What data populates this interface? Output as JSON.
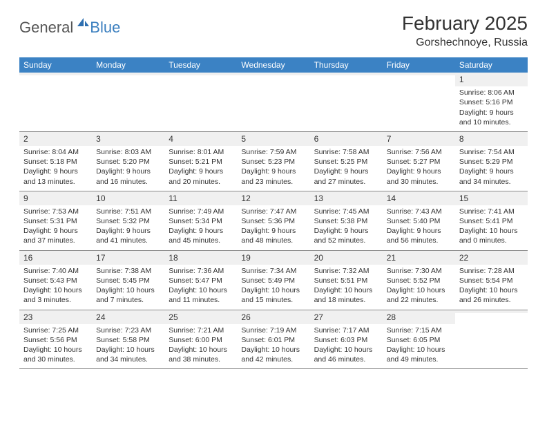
{
  "logo": {
    "general": "General",
    "blue": "Blue"
  },
  "title": "February 2025",
  "location": "Gorshechnoye, Russia",
  "colors": {
    "header_bg": "#3b82c4",
    "header_text": "#ffffff",
    "daynum_bg": "#f0f0f0",
    "border": "#888888",
    "logo_blue": "#3b7fbf",
    "body_text": "#333333"
  },
  "day_headers": [
    "Sunday",
    "Monday",
    "Tuesday",
    "Wednesday",
    "Thursday",
    "Friday",
    "Saturday"
  ],
  "weeks": [
    [
      {
        "n": "",
        "sunrise": "",
        "sunset": "",
        "daylight": ""
      },
      {
        "n": "",
        "sunrise": "",
        "sunset": "",
        "daylight": ""
      },
      {
        "n": "",
        "sunrise": "",
        "sunset": "",
        "daylight": ""
      },
      {
        "n": "",
        "sunrise": "",
        "sunset": "",
        "daylight": ""
      },
      {
        "n": "",
        "sunrise": "",
        "sunset": "",
        "daylight": ""
      },
      {
        "n": "",
        "sunrise": "",
        "sunset": "",
        "daylight": ""
      },
      {
        "n": "1",
        "sunrise": "Sunrise: 8:06 AM",
        "sunset": "Sunset: 5:16 PM",
        "daylight": "Daylight: 9 hours and 10 minutes."
      }
    ],
    [
      {
        "n": "2",
        "sunrise": "Sunrise: 8:04 AM",
        "sunset": "Sunset: 5:18 PM",
        "daylight": "Daylight: 9 hours and 13 minutes."
      },
      {
        "n": "3",
        "sunrise": "Sunrise: 8:03 AM",
        "sunset": "Sunset: 5:20 PM",
        "daylight": "Daylight: 9 hours and 16 minutes."
      },
      {
        "n": "4",
        "sunrise": "Sunrise: 8:01 AM",
        "sunset": "Sunset: 5:21 PM",
        "daylight": "Daylight: 9 hours and 20 minutes."
      },
      {
        "n": "5",
        "sunrise": "Sunrise: 7:59 AM",
        "sunset": "Sunset: 5:23 PM",
        "daylight": "Daylight: 9 hours and 23 minutes."
      },
      {
        "n": "6",
        "sunrise": "Sunrise: 7:58 AM",
        "sunset": "Sunset: 5:25 PM",
        "daylight": "Daylight: 9 hours and 27 minutes."
      },
      {
        "n": "7",
        "sunrise": "Sunrise: 7:56 AM",
        "sunset": "Sunset: 5:27 PM",
        "daylight": "Daylight: 9 hours and 30 minutes."
      },
      {
        "n": "8",
        "sunrise": "Sunrise: 7:54 AM",
        "sunset": "Sunset: 5:29 PM",
        "daylight": "Daylight: 9 hours and 34 minutes."
      }
    ],
    [
      {
        "n": "9",
        "sunrise": "Sunrise: 7:53 AM",
        "sunset": "Sunset: 5:31 PM",
        "daylight": "Daylight: 9 hours and 37 minutes."
      },
      {
        "n": "10",
        "sunrise": "Sunrise: 7:51 AM",
        "sunset": "Sunset: 5:32 PM",
        "daylight": "Daylight: 9 hours and 41 minutes."
      },
      {
        "n": "11",
        "sunrise": "Sunrise: 7:49 AM",
        "sunset": "Sunset: 5:34 PM",
        "daylight": "Daylight: 9 hours and 45 minutes."
      },
      {
        "n": "12",
        "sunrise": "Sunrise: 7:47 AM",
        "sunset": "Sunset: 5:36 PM",
        "daylight": "Daylight: 9 hours and 48 minutes."
      },
      {
        "n": "13",
        "sunrise": "Sunrise: 7:45 AM",
        "sunset": "Sunset: 5:38 PM",
        "daylight": "Daylight: 9 hours and 52 minutes."
      },
      {
        "n": "14",
        "sunrise": "Sunrise: 7:43 AM",
        "sunset": "Sunset: 5:40 PM",
        "daylight": "Daylight: 9 hours and 56 minutes."
      },
      {
        "n": "15",
        "sunrise": "Sunrise: 7:41 AM",
        "sunset": "Sunset: 5:41 PM",
        "daylight": "Daylight: 10 hours and 0 minutes."
      }
    ],
    [
      {
        "n": "16",
        "sunrise": "Sunrise: 7:40 AM",
        "sunset": "Sunset: 5:43 PM",
        "daylight": "Daylight: 10 hours and 3 minutes."
      },
      {
        "n": "17",
        "sunrise": "Sunrise: 7:38 AM",
        "sunset": "Sunset: 5:45 PM",
        "daylight": "Daylight: 10 hours and 7 minutes."
      },
      {
        "n": "18",
        "sunrise": "Sunrise: 7:36 AM",
        "sunset": "Sunset: 5:47 PM",
        "daylight": "Daylight: 10 hours and 11 minutes."
      },
      {
        "n": "19",
        "sunrise": "Sunrise: 7:34 AM",
        "sunset": "Sunset: 5:49 PM",
        "daylight": "Daylight: 10 hours and 15 minutes."
      },
      {
        "n": "20",
        "sunrise": "Sunrise: 7:32 AM",
        "sunset": "Sunset: 5:51 PM",
        "daylight": "Daylight: 10 hours and 18 minutes."
      },
      {
        "n": "21",
        "sunrise": "Sunrise: 7:30 AM",
        "sunset": "Sunset: 5:52 PM",
        "daylight": "Daylight: 10 hours and 22 minutes."
      },
      {
        "n": "22",
        "sunrise": "Sunrise: 7:28 AM",
        "sunset": "Sunset: 5:54 PM",
        "daylight": "Daylight: 10 hours and 26 minutes."
      }
    ],
    [
      {
        "n": "23",
        "sunrise": "Sunrise: 7:25 AM",
        "sunset": "Sunset: 5:56 PM",
        "daylight": "Daylight: 10 hours and 30 minutes."
      },
      {
        "n": "24",
        "sunrise": "Sunrise: 7:23 AM",
        "sunset": "Sunset: 5:58 PM",
        "daylight": "Daylight: 10 hours and 34 minutes."
      },
      {
        "n": "25",
        "sunrise": "Sunrise: 7:21 AM",
        "sunset": "Sunset: 6:00 PM",
        "daylight": "Daylight: 10 hours and 38 minutes."
      },
      {
        "n": "26",
        "sunrise": "Sunrise: 7:19 AM",
        "sunset": "Sunset: 6:01 PM",
        "daylight": "Daylight: 10 hours and 42 minutes."
      },
      {
        "n": "27",
        "sunrise": "Sunrise: 7:17 AM",
        "sunset": "Sunset: 6:03 PM",
        "daylight": "Daylight: 10 hours and 46 minutes."
      },
      {
        "n": "28",
        "sunrise": "Sunrise: 7:15 AM",
        "sunset": "Sunset: 6:05 PM",
        "daylight": "Daylight: 10 hours and 49 minutes."
      },
      {
        "n": "",
        "sunrise": "",
        "sunset": "",
        "daylight": ""
      }
    ]
  ]
}
